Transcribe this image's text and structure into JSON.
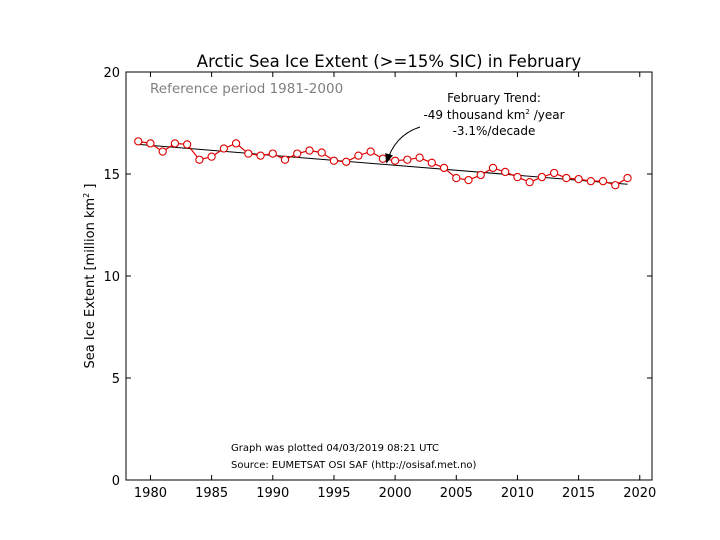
{
  "chart_data": {
    "type": "line",
    "title": "Arctic Sea Ice Extent (>=15% SIC) in February",
    "subtitle": "Reference period 1981-2000",
    "xlabel": "",
    "ylabel": "Sea Ice Extent [million km",
    "ylabel_sup": "2",
    "ylabel_end": " ]",
    "xlim": [
      1978,
      2021
    ],
    "ylim": [
      0,
      20
    ],
    "x_ticks": [
      1980,
      1985,
      1990,
      1995,
      2000,
      2005,
      2010,
      2015,
      2020
    ],
    "y_ticks": [
      0,
      5,
      10,
      15,
      20
    ],
    "grid": false,
    "series": [
      {
        "color": "#dd0000",
        "marker": "open-circle",
        "x": [
          1979,
          1980,
          1981,
          1982,
          1983,
          1984,
          1985,
          1986,
          1987,
          1988,
          1989,
          1990,
          1991,
          1992,
          1993,
          1994,
          1995,
          1996,
          1997,
          1998,
          1999,
          2000,
          2001,
          2002,
          2003,
          2004,
          2005,
          2006,
          2007,
          2008,
          2009,
          2010,
          2011,
          2012,
          2013,
          2014,
          2015,
          2016,
          2017,
          2018,
          2019
        ],
        "y": [
          16.6,
          16.5,
          16.1,
          16.5,
          16.45,
          15.7,
          15.85,
          16.25,
          16.5,
          16.0,
          15.9,
          16.0,
          15.7,
          16.0,
          16.15,
          16.05,
          15.65,
          15.6,
          15.9,
          16.1,
          15.75,
          15.65,
          15.7,
          15.8,
          15.55,
          15.3,
          14.8,
          14.7,
          14.95,
          15.3,
          15.1,
          14.85,
          14.6,
          14.85,
          15.05,
          14.8,
          14.75,
          14.65,
          14.65,
          14.45,
          14.8
        ]
      }
    ],
    "trend": {
      "color": "#000000",
      "x": [
        1979,
        2019
      ],
      "y": [
        16.45,
        14.5
      ]
    },
    "annotation": {
      "lines": [
        "February Trend:",
        "-49 thousand km",
        "-3.1%/decade"
      ],
      "sup": "2",
      "line2_end": " /year",
      "arrow_to": {
        "x": 1999.3,
        "y": 15.55
      }
    },
    "footer": [
      "Graph was plotted 04/03/2019 08:21 UTC",
      "Source: EUMETSAT OSI SAF (http://osisaf.met.no)"
    ]
  }
}
